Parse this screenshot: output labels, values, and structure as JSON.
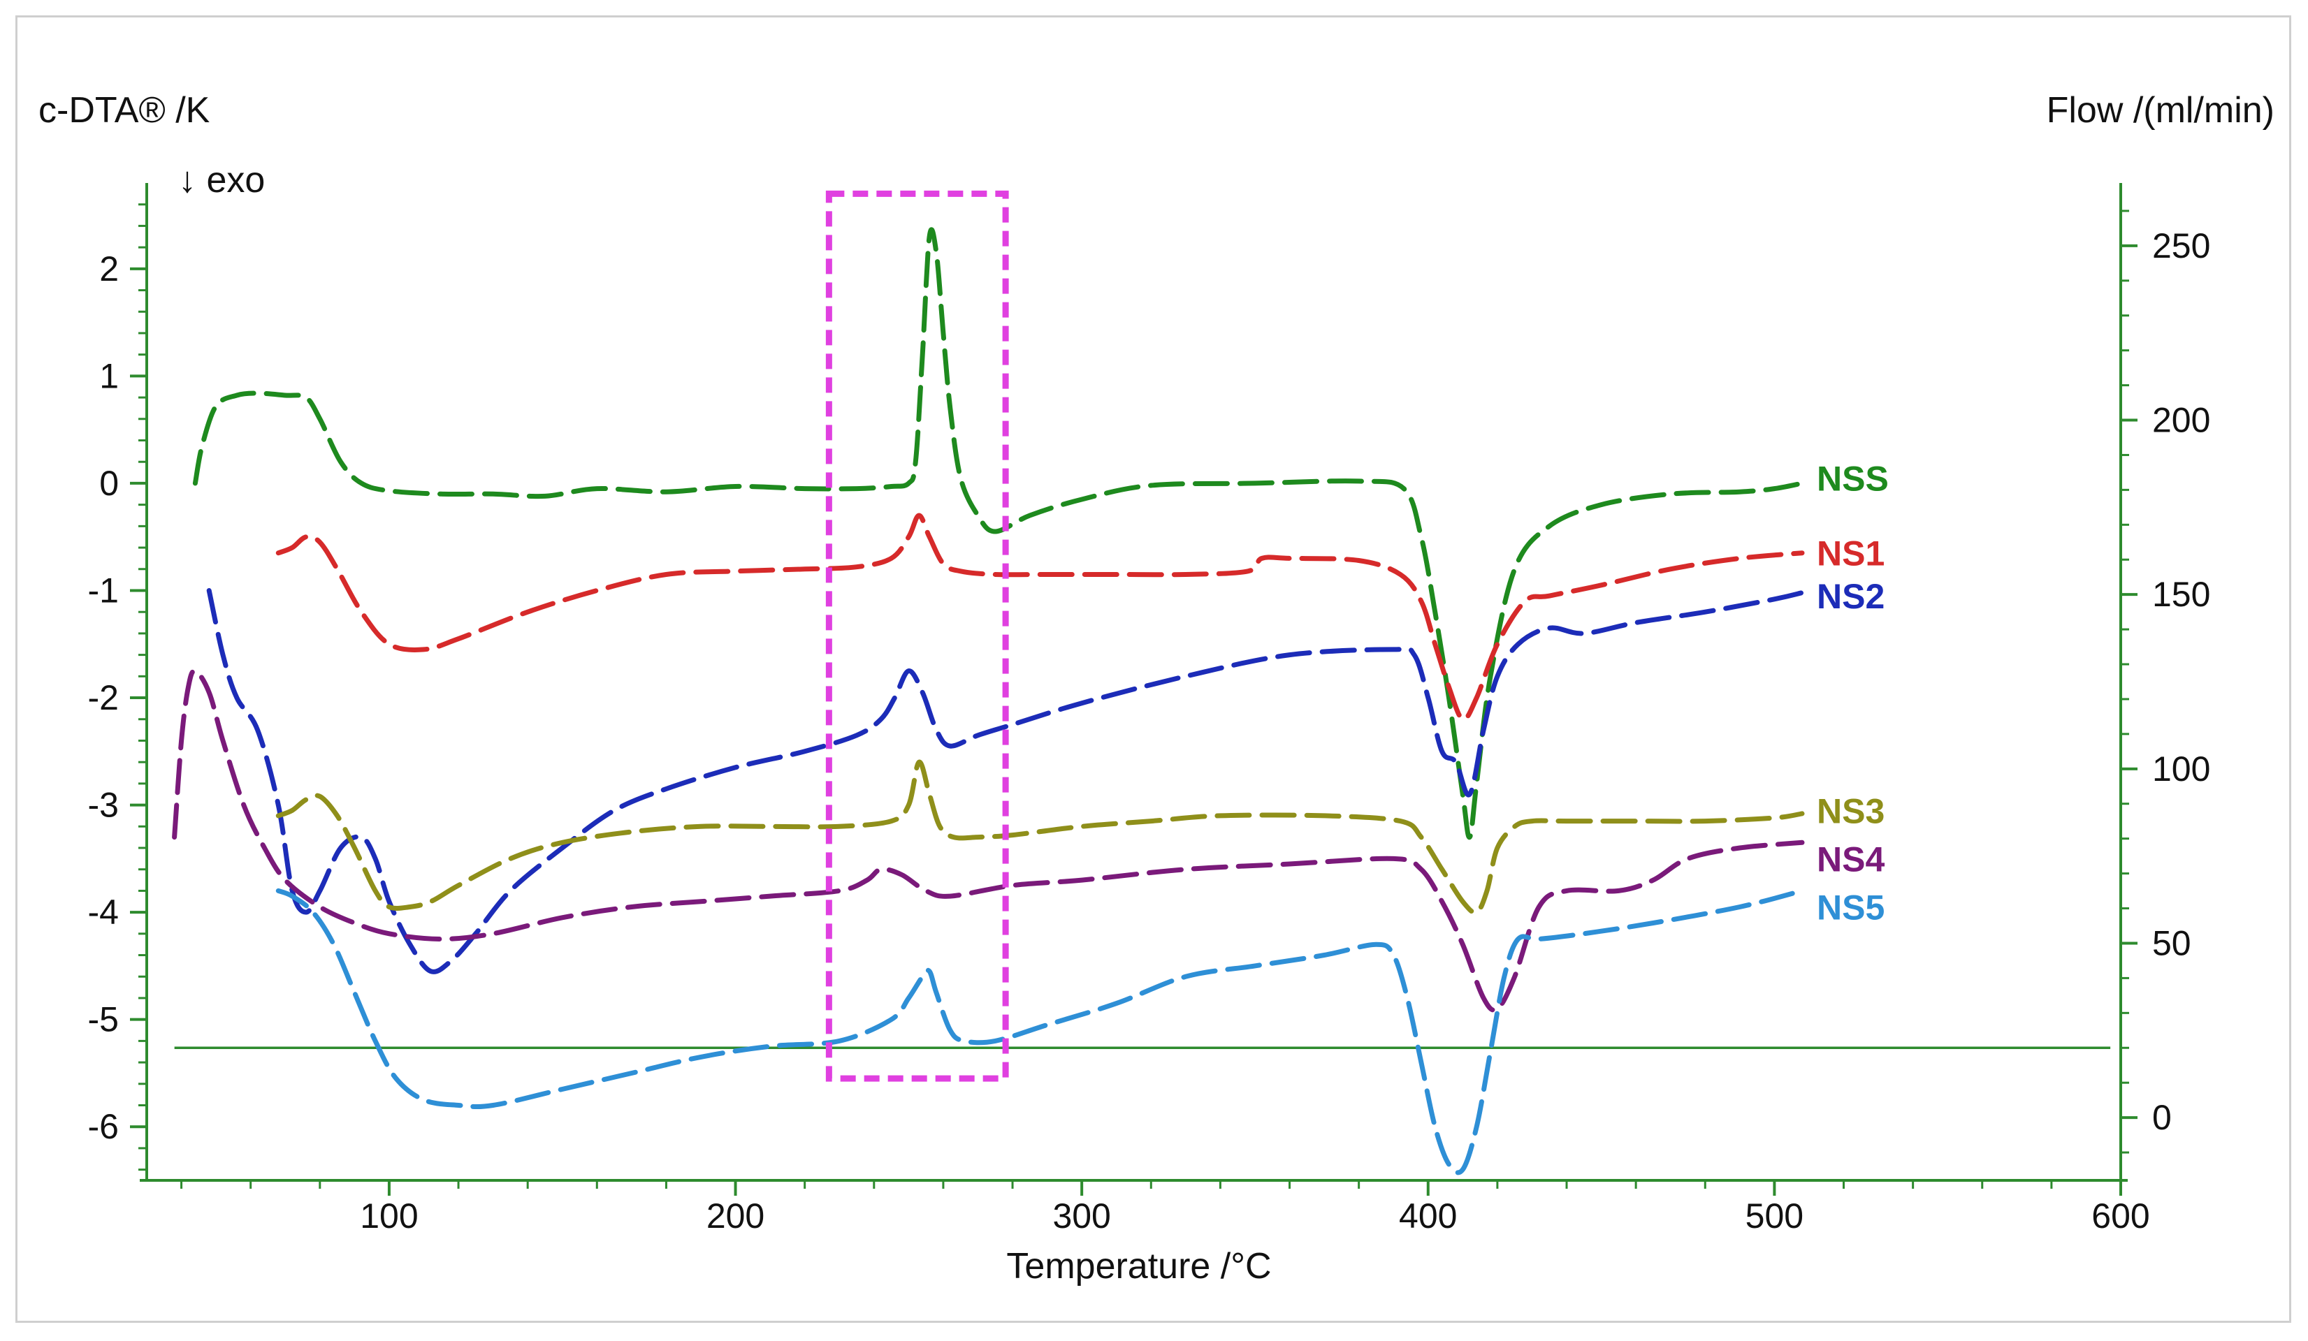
{
  "chart_data": {
    "type": "line",
    "title": "",
    "xlabel": "Temperature /°C",
    "ylabel": "c-DTA® /K",
    "ylabel_note": "↓ exo",
    "y2label": "Flow /(ml/min)",
    "xlim": [
      30,
      600
    ],
    "ylim": [
      -6.5,
      2.8
    ],
    "y2lim": [
      -18,
      268
    ],
    "x_ticks": [
      100,
      200,
      300,
      400,
      500,
      600
    ],
    "y_ticks": [
      2,
      1,
      0,
      -1,
      -2,
      -3,
      -4,
      -5,
      -6
    ],
    "y2_ticks": [
      250,
      200,
      150,
      100,
      50,
      0
    ],
    "highlight_box": {
      "x_range": [
        227,
        278
      ],
      "y_range": [
        -5.55,
        2.7
      ],
      "color": "#e040e0"
    },
    "flow": {
      "name": "Flow",
      "color": "#2e8b2e",
      "x": [
        38,
        597
      ],
      "y2": [
        20,
        20
      ]
    },
    "series": [
      {
        "name": "NSS",
        "color": "#1e8a1e",
        "label_y": 0.05,
        "x": [
          44,
          46,
          50,
          56,
          62,
          70,
          76,
          80,
          86,
          92,
          100,
          115,
          130,
          145,
          160,
          180,
          200,
          220,
          235,
          245,
          250,
          252,
          254,
          256,
          258,
          260,
          262,
          265,
          270,
          275,
          285,
          300,
          320,
          350,
          380,
          393,
          398,
          402,
          406,
          410,
          412,
          414,
          418,
          425,
          435,
          450,
          470,
          490,
          500,
          508
        ],
        "y": [
          0.0,
          0.35,
          0.72,
          0.82,
          0.84,
          0.82,
          0.8,
          0.6,
          0.2,
          0.0,
          -0.07,
          -0.1,
          -0.1,
          -0.12,
          -0.05,
          -0.08,
          -0.03,
          -0.05,
          -0.05,
          -0.03,
          0.0,
          0.2,
          1.2,
          2.3,
          2.15,
          1.4,
          0.7,
          0.05,
          -0.3,
          -0.45,
          -0.3,
          -0.15,
          -0.02,
          0.0,
          0.02,
          -0.05,
          -0.5,
          -1.2,
          -2.0,
          -2.9,
          -3.3,
          -2.8,
          -1.8,
          -0.8,
          -0.4,
          -0.2,
          -0.1,
          -0.08,
          -0.05,
          0.0
        ]
      },
      {
        "name": "NS1",
        "color": "#d62a2a",
        "label_y": -0.65,
        "x": [
          68,
          72,
          76,
          80,
          85,
          92,
          100,
          110,
          120,
          140,
          160,
          180,
          200,
          220,
          235,
          245,
          250,
          253,
          256,
          260,
          265,
          275,
          290,
          310,
          330,
          348,
          352,
          360,
          380,
          392,
          398,
          402,
          406,
          410,
          414,
          420,
          428,
          435,
          450,
          470,
          490,
          508
        ],
        "y": [
          -0.65,
          -0.6,
          -0.5,
          -0.55,
          -0.8,
          -1.2,
          -1.5,
          -1.55,
          -1.45,
          -1.2,
          -1.0,
          -0.85,
          -0.82,
          -0.8,
          -0.78,
          -0.7,
          -0.5,
          -0.3,
          -0.5,
          -0.75,
          -0.82,
          -0.85,
          -0.85,
          -0.85,
          -0.85,
          -0.82,
          -0.7,
          -0.7,
          -0.72,
          -0.85,
          -1.1,
          -1.5,
          -1.9,
          -2.2,
          -2.0,
          -1.5,
          -1.1,
          -1.05,
          -0.95,
          -0.8,
          -0.7,
          -0.65
        ]
      },
      {
        "name": "NS2",
        "color": "#1c2cb8",
        "label_y": -1.05,
        "x": [
          48,
          52,
          56,
          62,
          68,
          72,
          76,
          80,
          86,
          92,
          96,
          100,
          106,
          112,
          118,
          125,
          135,
          150,
          165,
          180,
          200,
          220,
          235,
          242,
          246,
          250,
          254,
          258,
          262,
          270,
          280,
          300,
          330,
          360,
          390,
          396,
          400,
          404,
          408,
          412,
          416,
          420,
          426,
          435,
          445,
          460,
          480,
          500,
          508
        ],
        "y": [
          -1.0,
          -1.6,
          -2.0,
          -2.3,
          -3.0,
          -3.8,
          -4.0,
          -3.8,
          -3.4,
          -3.3,
          -3.5,
          -3.9,
          -4.3,
          -4.55,
          -4.45,
          -4.2,
          -3.8,
          -3.4,
          -3.05,
          -2.85,
          -2.65,
          -2.5,
          -2.35,
          -2.2,
          -2.0,
          -1.75,
          -1.95,
          -2.3,
          -2.45,
          -2.35,
          -2.25,
          -2.05,
          -1.8,
          -1.6,
          -1.55,
          -1.6,
          -2.0,
          -2.5,
          -2.6,
          -2.9,
          -2.3,
          -1.8,
          -1.5,
          -1.35,
          -1.4,
          -1.3,
          -1.2,
          -1.08,
          -1.02
        ]
      },
      {
        "name": "NS3",
        "color": "#8f8f1a",
        "label_y": -3.05,
        "x": [
          68,
          72,
          76,
          80,
          85,
          90,
          96,
          100,
          106,
          112,
          120,
          135,
          150,
          170,
          190,
          210,
          230,
          245,
          250,
          253,
          256,
          259,
          263,
          270,
          280,
          300,
          320,
          340,
          370,
          392,
          398,
          404,
          410,
          414,
          417,
          420,
          425,
          430,
          440,
          460,
          480,
          500,
          508
        ],
        "y": [
          -3.1,
          -3.05,
          -2.95,
          -2.92,
          -3.1,
          -3.4,
          -3.8,
          -3.95,
          -3.95,
          -3.9,
          -3.75,
          -3.5,
          -3.35,
          -3.25,
          -3.2,
          -3.2,
          -3.2,
          -3.15,
          -3.0,
          -2.6,
          -2.9,
          -3.2,
          -3.3,
          -3.3,
          -3.28,
          -3.2,
          -3.15,
          -3.1,
          -3.1,
          -3.15,
          -3.3,
          -3.6,
          -3.9,
          -4.0,
          -3.8,
          -3.4,
          -3.2,
          -3.15,
          -3.15,
          -3.15,
          -3.15,
          -3.12,
          -3.08
        ]
      },
      {
        "name": "NS4",
        "color": "#7a1a7a",
        "label_y": -3.5,
        "x": [
          38,
          40,
          42,
          44,
          48,
          52,
          58,
          64,
          70,
          80,
          90,
          100,
          115,
          130,
          150,
          170,
          190,
          210,
          230,
          238,
          242,
          248,
          255,
          262,
          280,
          300,
          330,
          360,
          390,
          398,
          404,
          410,
          416,
          420,
          425,
          432,
          440,
          455,
          465,
          475,
          490,
          508
        ],
        "y": [
          -3.3,
          -2.4,
          -1.9,
          -1.75,
          -1.95,
          -2.4,
          -3.0,
          -3.4,
          -3.7,
          -3.95,
          -4.1,
          -4.2,
          -4.25,
          -4.2,
          -4.05,
          -3.95,
          -3.9,
          -3.85,
          -3.8,
          -3.7,
          -3.6,
          -3.65,
          -3.8,
          -3.85,
          -3.75,
          -3.7,
          -3.6,
          -3.55,
          -3.5,
          -3.6,
          -3.9,
          -4.3,
          -4.8,
          -4.9,
          -4.6,
          -3.95,
          -3.8,
          -3.8,
          -3.7,
          -3.5,
          -3.4,
          -3.35
        ]
      },
      {
        "name": "NS5",
        "color": "#2e8fd6",
        "label_y": -3.95,
        "x": [
          68,
          72,
          78,
          84,
          90,
          96,
          102,
          110,
          120,
          130,
          150,
          170,
          190,
          210,
          230,
          245,
          250,
          254,
          256,
          258,
          262,
          266,
          275,
          290,
          310,
          330,
          350,
          370,
          385,
          390,
          394,
          398,
          402,
          406,
          410,
          414,
          418,
          422,
          426,
          432,
          445,
          465,
          490,
          508
        ],
        "y": [
          -3.8,
          -3.85,
          -4.0,
          -4.3,
          -4.75,
          -5.2,
          -5.55,
          -5.75,
          -5.8,
          -5.8,
          -5.65,
          -5.5,
          -5.35,
          -5.25,
          -5.2,
          -5.0,
          -4.8,
          -4.6,
          -4.55,
          -4.75,
          -5.1,
          -5.2,
          -5.2,
          -5.05,
          -4.85,
          -4.6,
          -4.5,
          -4.4,
          -4.3,
          -4.4,
          -4.8,
          -5.4,
          -6.0,
          -6.35,
          -6.4,
          -6.0,
          -5.3,
          -4.6,
          -4.25,
          -4.25,
          -4.2,
          -4.1,
          -3.95,
          -3.8
        ]
      }
    ]
  }
}
